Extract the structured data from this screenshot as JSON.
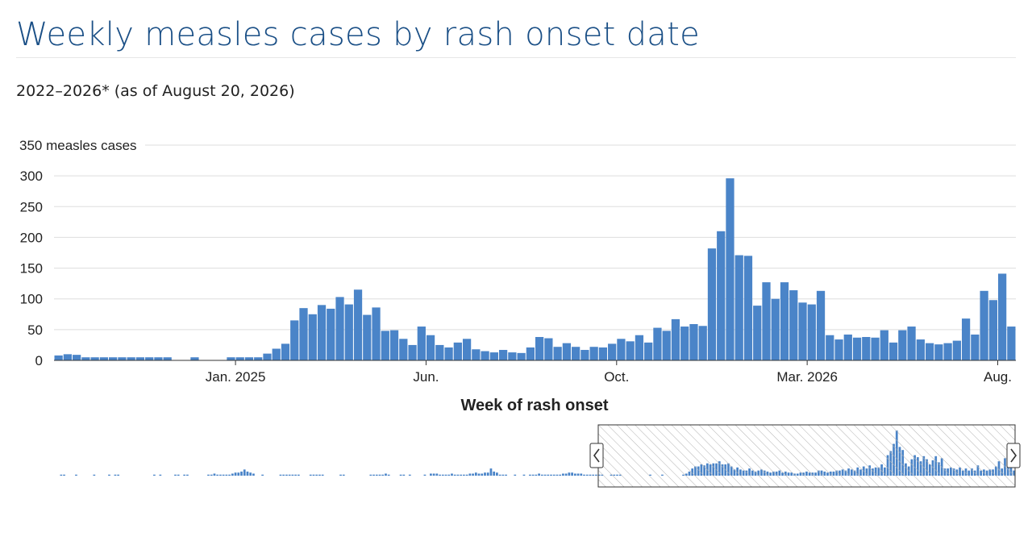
{
  "header": {
    "title": "Weekly measles cases by rash onset date",
    "subtitle": "2022–2026* (as of August 20, 2026)"
  },
  "chart_data": {
    "type": "bar",
    "ylabel": "350 measles cases",
    "xlabel": "Week of rash onset",
    "ylim": [
      0,
      350
    ],
    "yticks": [
      {
        "value": 0,
        "label": "0"
      },
      {
        "value": 50,
        "label": "50"
      },
      {
        "value": 100,
        "label": "100"
      },
      {
        "value": 150,
        "label": "150"
      },
      {
        "value": 200,
        "label": "200"
      },
      {
        "value": 250,
        "label": "250"
      },
      {
        "value": 300,
        "label": "300"
      }
    ],
    "xticks": [
      {
        "week": 20,
        "label": "Jan. 2025"
      },
      {
        "week": 41,
        "label": "Jun."
      },
      {
        "week": 62,
        "label": "Oct."
      },
      {
        "week": 83,
        "label": "Mar. 2026"
      },
      {
        "week": 104,
        "label": "Aug."
      }
    ],
    "values": [
      8,
      10,
      9,
      5,
      5,
      5,
      5,
      5,
      5,
      5,
      5,
      5,
      5,
      0,
      0,
      5,
      0,
      0,
      0,
      5,
      5,
      5,
      5,
      11,
      19,
      27,
      65,
      85,
      75,
      90,
      84,
      103,
      91,
      115,
      74,
      86,
      48,
      49,
      35,
      25,
      55,
      41,
      25,
      21,
      29,
      35,
      18,
      15,
      13,
      17,
      13,
      12,
      21,
      38,
      36,
      22,
      28,
      22,
      17,
      22,
      21,
      27,
      35,
      31,
      41,
      29,
      53,
      48,
      67,
      55,
      59,
      56,
      182,
      210,
      296,
      171,
      170,
      89,
      127,
      100,
      127,
      114,
      94,
      91,
      113,
      41,
      34,
      42,
      37,
      38,
      37,
      49,
      29,
      49,
      55,
      34,
      28,
      26,
      28,
      32,
      68,
      42,
      113,
      98,
      141,
      55
    ],
    "color": "#4a84c8",
    "grid_color": "#dddddd",
    "navigator": {
      "values": [
        0,
        0,
        1,
        1,
        0,
        0,
        0,
        1,
        0,
        0,
        0,
        0,
        0,
        1,
        0,
        0,
        0,
        0,
        1,
        0,
        1,
        1,
        0,
        0,
        0,
        0,
        0,
        0,
        0,
        0,
        0,
        0,
        0,
        1,
        0,
        1,
        0,
        0,
        0,
        0,
        1,
        1,
        0,
        1,
        1,
        0,
        0,
        0,
        0,
        0,
        0,
        1,
        1,
        2,
        1,
        1,
        1,
        1,
        1,
        2,
        3,
        3,
        4,
        6,
        4,
        3,
        2,
        0,
        0,
        1,
        0,
        0,
        0,
        0,
        0,
        1,
        1,
        1,
        1,
        1,
        1,
        1,
        0,
        0,
        0,
        1,
        1,
        1,
        1,
        1,
        0,
        0,
        0,
        0,
        0,
        1,
        1,
        0,
        0,
        0,
        0,
        0,
        0,
        0,
        0,
        1,
        1,
        1,
        1,
        1,
        2,
        1,
        0,
        0,
        0,
        1,
        1,
        0,
        1,
        0,
        0,
        0,
        0,
        1,
        0,
        2,
        2,
        2,
        1,
        1,
        1,
        1,
        2,
        1,
        1,
        1,
        1,
        1,
        2,
        2,
        3,
        2,
        2,
        3,
        3,
        7,
        4,
        3,
        1,
        1,
        1,
        0,
        0,
        1,
        0,
        0,
        1,
        0,
        1,
        1,
        1,
        2,
        1,
        1,
        1,
        1,
        1,
        1,
        1,
        2,
        2,
        3,
        3,
        2,
        2,
        2,
        1,
        1,
        1,
        1,
        1,
        1,
        1,
        0,
        0,
        1,
        1,
        1,
        1,
        0,
        0,
        0,
        0,
        0,
        0,
        0,
        0,
        0,
        1,
        0,
        0,
        0,
        1,
        0,
        0,
        0,
        0,
        0,
        0,
        1,
        2,
        4,
        7,
        9,
        9,
        11,
        10,
        12,
        11,
        12,
        12,
        14,
        11,
        11,
        12,
        9,
        6,
        8,
        6,
        5,
        5,
        7,
        5,
        4,
        5,
        6,
        5,
        4,
        3,
        4,
        4,
        5,
        3,
        4,
        3,
        3,
        2,
        2,
        3,
        3,
        4,
        3,
        3,
        3,
        5,
        5,
        4,
        3,
        4,
        4,
        5,
        5,
        6,
        5,
        7,
        6,
        5,
        8,
        6,
        9,
        7,
        10,
        7,
        8,
        8,
        11,
        8,
        20,
        24,
        31,
        44,
        28,
        25,
        12,
        9,
        16,
        20,
        18,
        14,
        19,
        16,
        11,
        15,
        19,
        13,
        17,
        7,
        7,
        8,
        7,
        6,
        8,
        5,
        7,
        5,
        7,
        5,
        10,
        5,
        6,
        5,
        6,
        6,
        9,
        14,
        7,
        17,
        18,
        14,
        5
      ],
      "selected_fraction": [
        0.567,
        1.0
      ]
    }
  }
}
